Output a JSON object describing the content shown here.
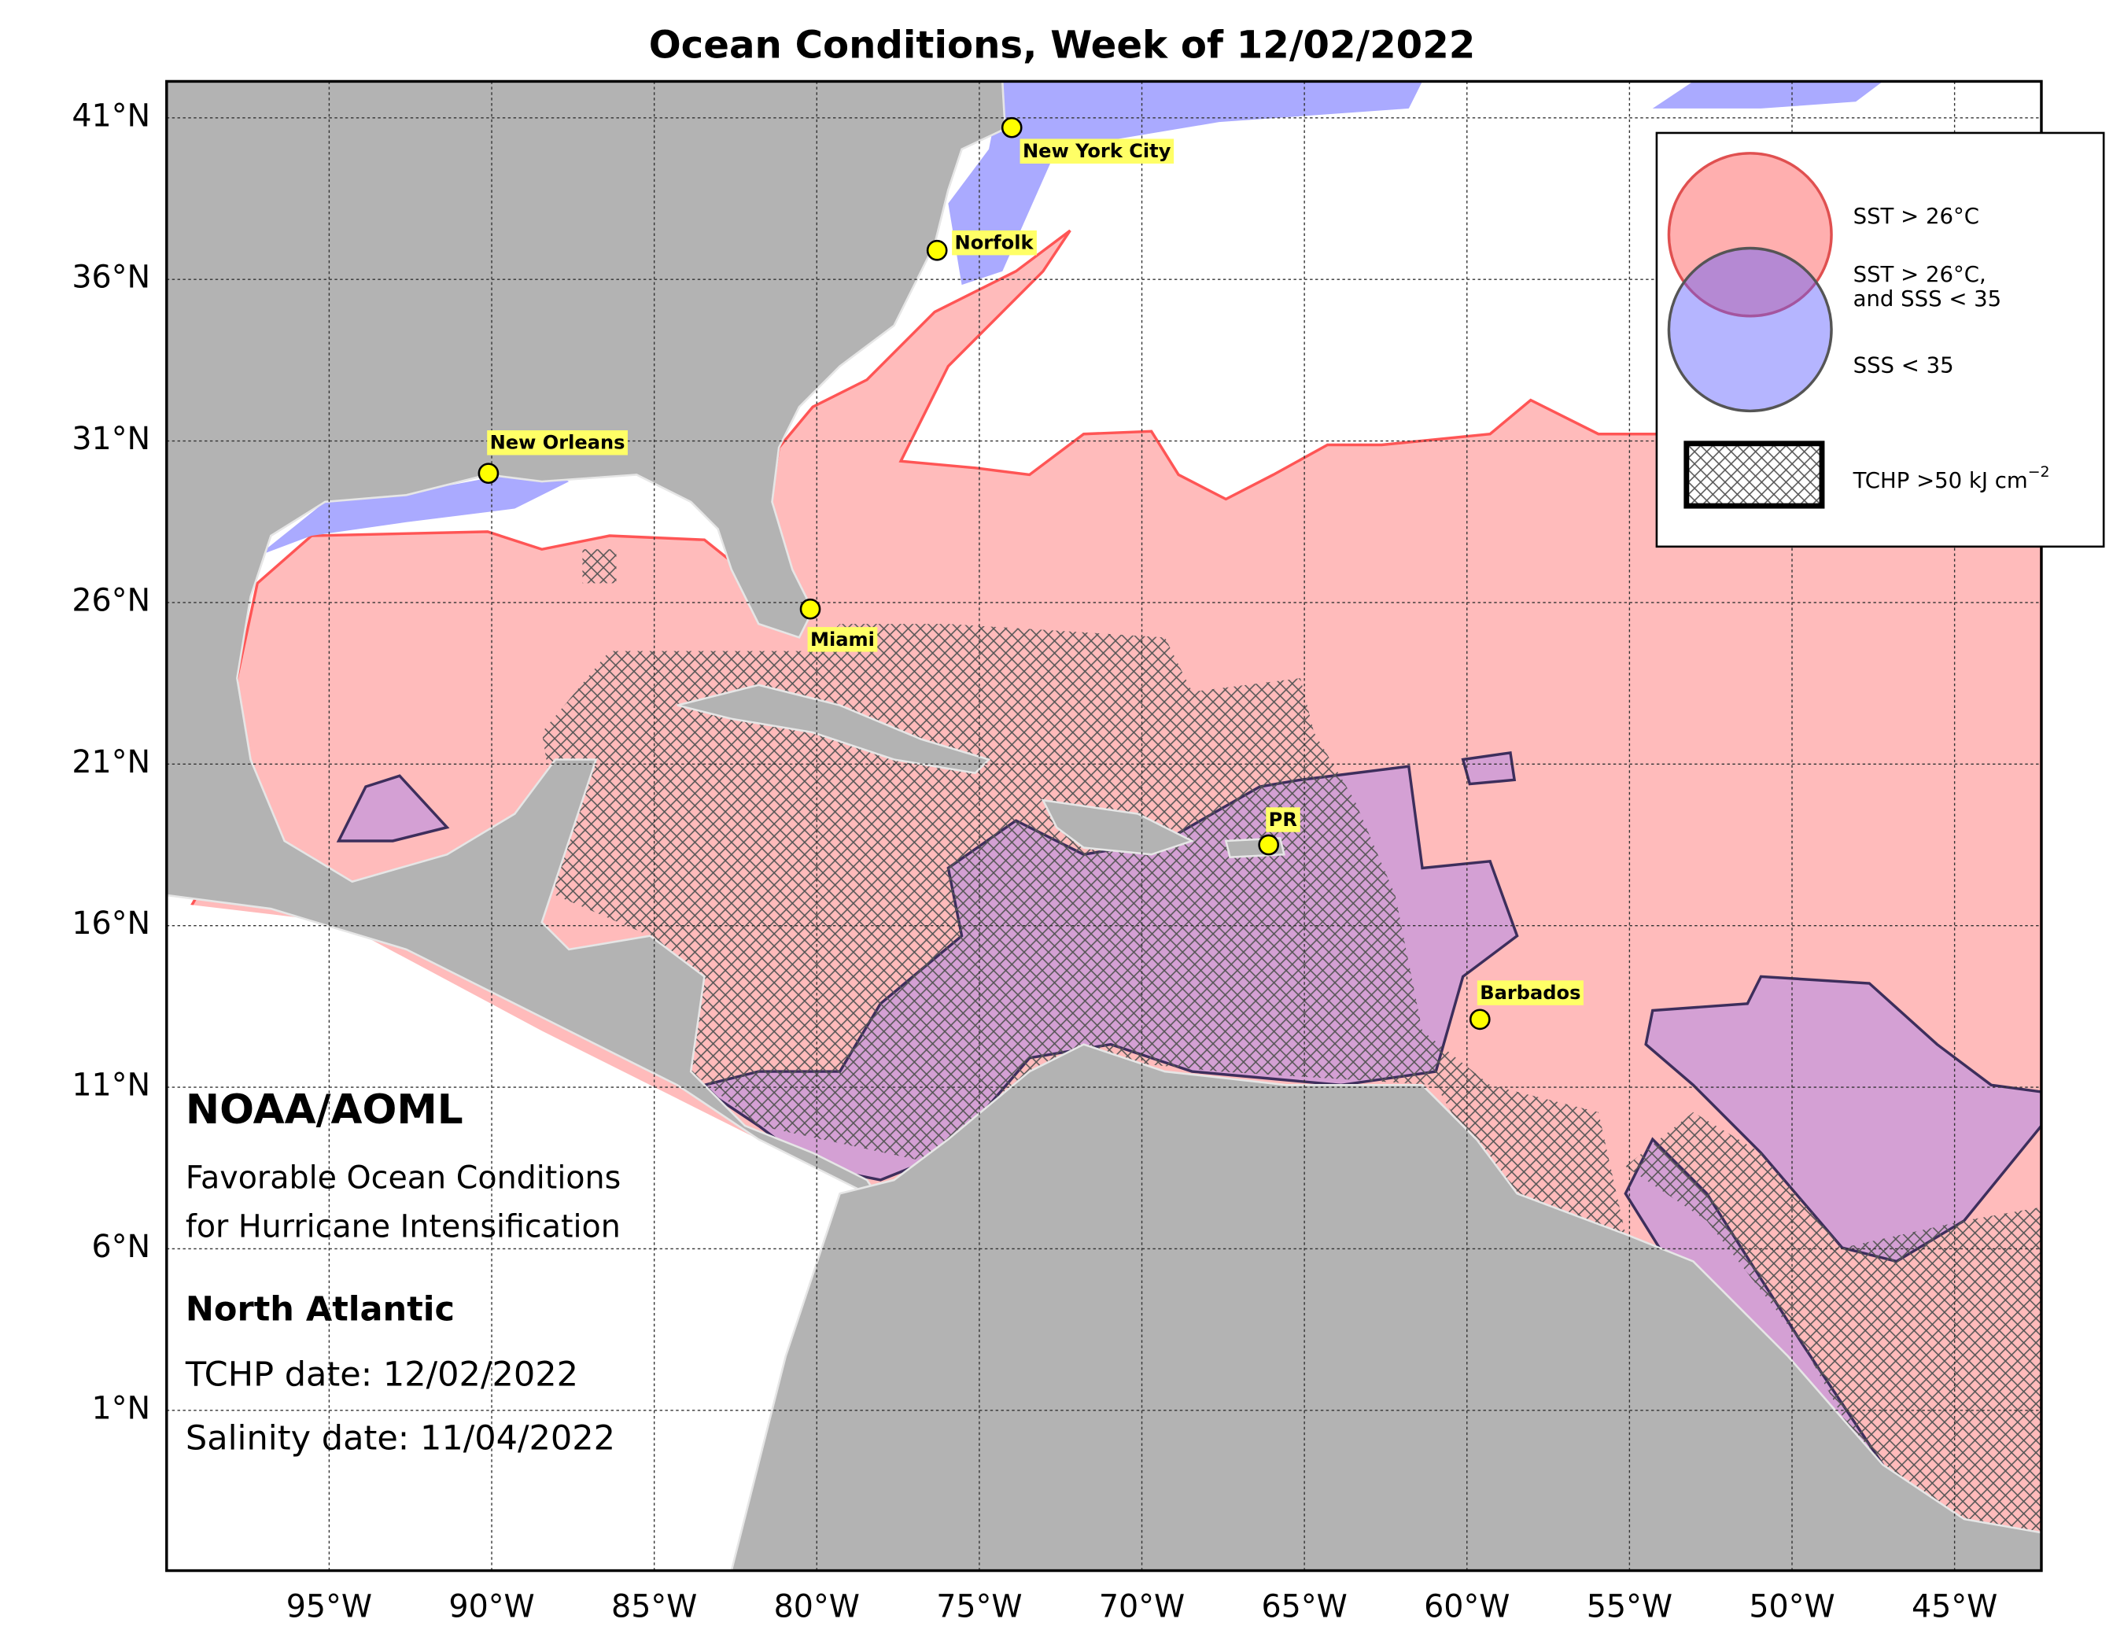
{
  "title": "Ocean Conditions, Week of 12/02/2022",
  "xlim": [
    -100,
    -42.33
  ],
  "ylim": [
    -3.96,
    42.13
  ],
  "grid": true,
  "xticks": [
    {
      "value": -95,
      "label": "95°W"
    },
    {
      "value": -90,
      "label": "90°W"
    },
    {
      "value": -85,
      "label": "85°W"
    },
    {
      "value": -80,
      "label": "80°W"
    },
    {
      "value": -75,
      "label": "75°W"
    },
    {
      "value": -70,
      "label": "70°W"
    },
    {
      "value": -65,
      "label": "65°W"
    },
    {
      "value": -60,
      "label": "60°W"
    },
    {
      "value": -55,
      "label": "55°W"
    },
    {
      "value": -50,
      "label": "50°W"
    },
    {
      "value": -45,
      "label": "45°W"
    }
  ],
  "yticks": [
    {
      "value": 41,
      "label": "41°N"
    },
    {
      "value": 36,
      "label": "36°N"
    },
    {
      "value": 31,
      "label": "31°N"
    },
    {
      "value": 26,
      "label": "26°N"
    },
    {
      "value": 21,
      "label": "21°N"
    },
    {
      "value": 16,
      "label": "16°N"
    },
    {
      "value": 11,
      "label": "11°N"
    },
    {
      "value": 6,
      "label": "6°N"
    },
    {
      "value": 1,
      "label": "1°N"
    }
  ],
  "cities": [
    {
      "name": "New York City",
      "lon": -74.0,
      "lat": 40.7
    },
    {
      "name": "Norfolk",
      "lon": -76.3,
      "lat": 36.9
    },
    {
      "name": "New Orleans",
      "lon": -90.1,
      "lat": 30.0
    },
    {
      "name": "Miami",
      "lon": -80.2,
      "lat": 25.8
    },
    {
      "name": "PR",
      "lon": -66.1,
      "lat": 18.5
    },
    {
      "name": "Barbados",
      "lon": -59.6,
      "lat": 13.1
    }
  ],
  "legend": {
    "sst": "SST > 26°C",
    "both_line1": "SST > 26°C,",
    "both_line2": "and SSS < 35",
    "sss": "SSS < 35",
    "tchp": "TCHP >50 kJ cm",
    "tchp_exponent": "−2"
  },
  "info": {
    "org": "NOAA/AOML",
    "line1": "Favorable Ocean Conditions",
    "line2": "for Hurricane Intensification",
    "region": "North Atlantic",
    "tchp_date": "TCHP date: 12/02/2022",
    "salinity_date": "Salinity date: 11/04/2022"
  }
}
